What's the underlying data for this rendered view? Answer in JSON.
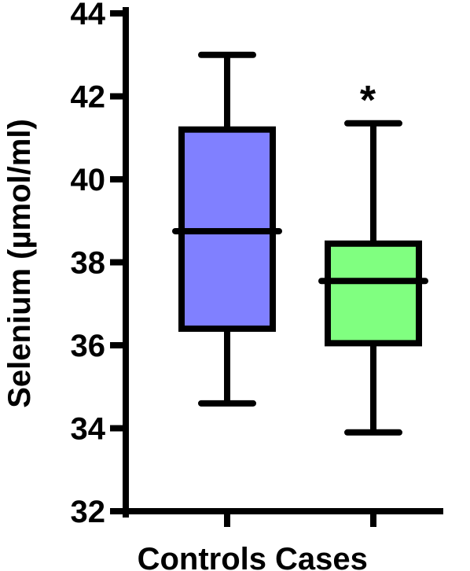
{
  "chart_data": {
    "type": "boxplot",
    "ylabel": "Selenium (µmol/ml)",
    "ylim": [
      32,
      44
    ],
    "yticks": [
      32,
      34,
      36,
      38,
      40,
      42,
      44
    ],
    "grid": false,
    "categories": [
      "Controls",
      "Cases"
    ],
    "boxes": [
      {
        "category": "Controls",
        "min": 34.6,
        "q1": 36.4,
        "median": 38.75,
        "q3": 41.2,
        "max": 43.0,
        "color": "#8080ff",
        "annotation": ""
      },
      {
        "category": "Cases",
        "min": 33.9,
        "q1": 36.05,
        "median": 37.55,
        "q3": 38.45,
        "max": 41.35,
        "color": "#80ff80",
        "annotation": "*"
      }
    ]
  }
}
